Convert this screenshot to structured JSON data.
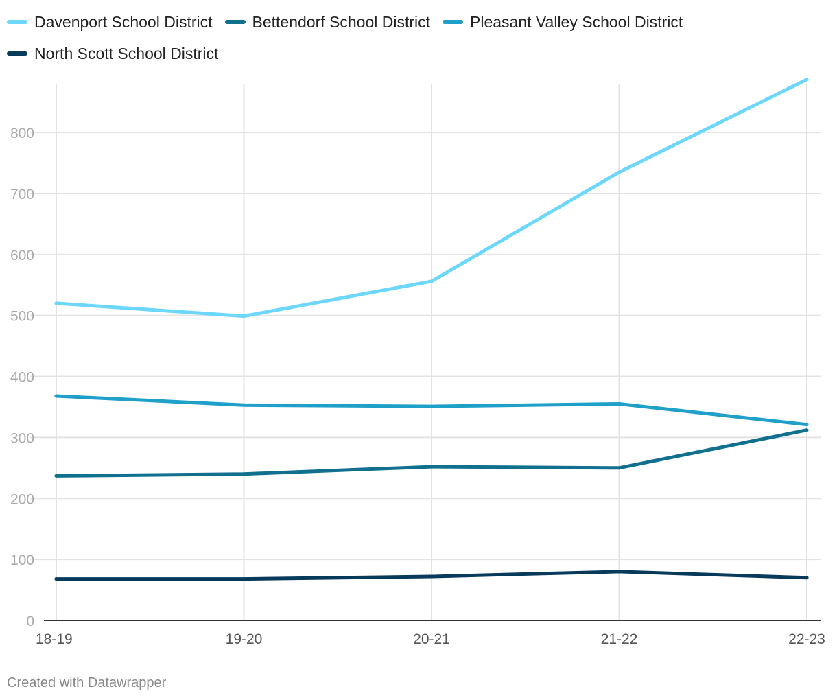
{
  "chart_data": {
    "type": "line",
    "title": "",
    "xlabel": "",
    "ylabel": "",
    "categories": [
      "18-19",
      "19-20",
      "20-21",
      "21-22",
      "22-23"
    ],
    "ylim": [
      0,
      880
    ],
    "yticks": [
      0,
      100,
      200,
      300,
      400,
      500,
      600,
      700,
      800
    ],
    "grid": true,
    "legend": "top",
    "series": [
      {
        "name": "Davenport School District",
        "color": "#6dd7fb",
        "values": [
          520,
          499,
          556,
          735,
          887
        ]
      },
      {
        "name": "Bettendorf School District",
        "color": "#12708f",
        "values": [
          237,
          240,
          252,
          250,
          312
        ]
      },
      {
        "name": "Pleasant Valley School District",
        "color": "#1fa0c9",
        "values": [
          368,
          353,
          351,
          355,
          321
        ]
      },
      {
        "name": "North Scott School District",
        "color": "#083a5c",
        "values": [
          68,
          68,
          72,
          80,
          70
        ]
      }
    ]
  },
  "footer": {
    "credit": "Created with Datawrapper"
  }
}
